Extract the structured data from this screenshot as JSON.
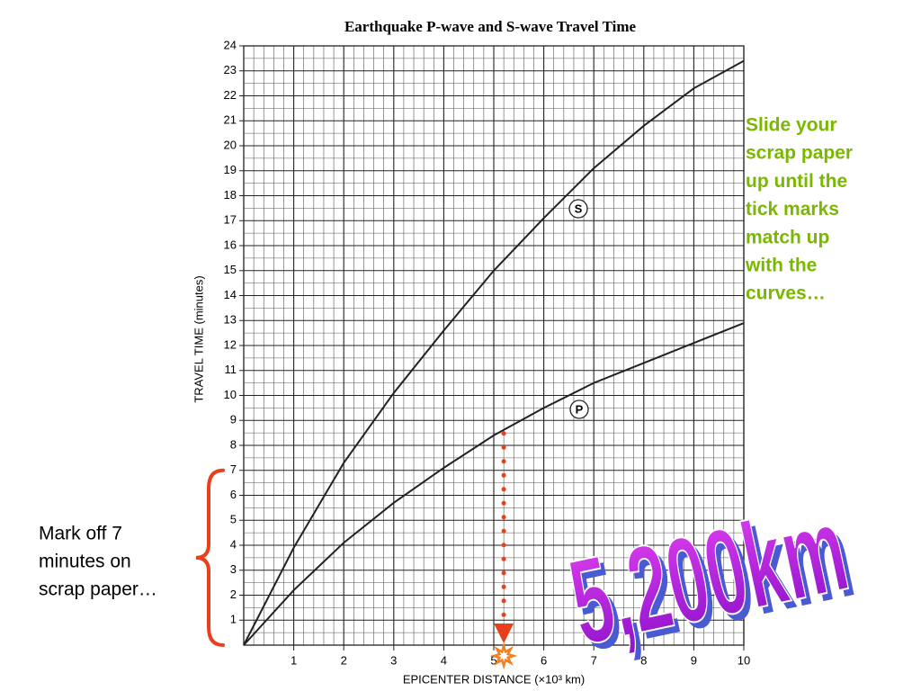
{
  "chart_data": {
    "type": "line",
    "title": "Earthquake P-wave and S-wave Travel Time",
    "x_label": "EPICENTER DISTANCE (×10³ km)",
    "y_label": "TRAVEL TIME (minutes)",
    "x": [
      0,
      1,
      2,
      3,
      4,
      5,
      6,
      7,
      8,
      9,
      10
    ],
    "series": [
      {
        "name": "S",
        "color": "#222222",
        "values": [
          0,
          3.9,
          7.3,
          10.1,
          12.6,
          15,
          17.1,
          19.1,
          20.8,
          22.3,
          23.4
        ]
      },
      {
        "name": "P",
        "color": "#222222",
        "values": [
          0,
          2.2,
          4.1,
          5.7,
          7.1,
          8.4,
          9.5,
          10.5,
          11.3,
          12.1,
          12.9
        ]
      }
    ],
    "xlim": [
      0,
      10
    ],
    "xticks": [
      1,
      2,
      3,
      4,
      5,
      6,
      7,
      8,
      9,
      10
    ],
    "ylim": [
      0,
      24
    ],
    "yticks": [
      1,
      2,
      3,
      4,
      5,
      6,
      7,
      8,
      9,
      10,
      11,
      12,
      13,
      14,
      15,
      16,
      17,
      18,
      19,
      20,
      21,
      22,
      23,
      24
    ],
    "grid": true,
    "annotations": [
      {
        "lines": [
          "Slide your",
          "scrap paper",
          "up until the",
          "tick marks",
          "match up",
          "with the",
          "curves…"
        ],
        "color": "#7ab800"
      },
      {
        "lines": [
          "Mark off 7",
          "minutes on",
          "scrap paper…"
        ],
        "value": 7,
        "color": "#e8401c"
      },
      {
        "text": "5,200km",
        "value": 5.2,
        "color": "#e8401c"
      }
    ]
  }
}
